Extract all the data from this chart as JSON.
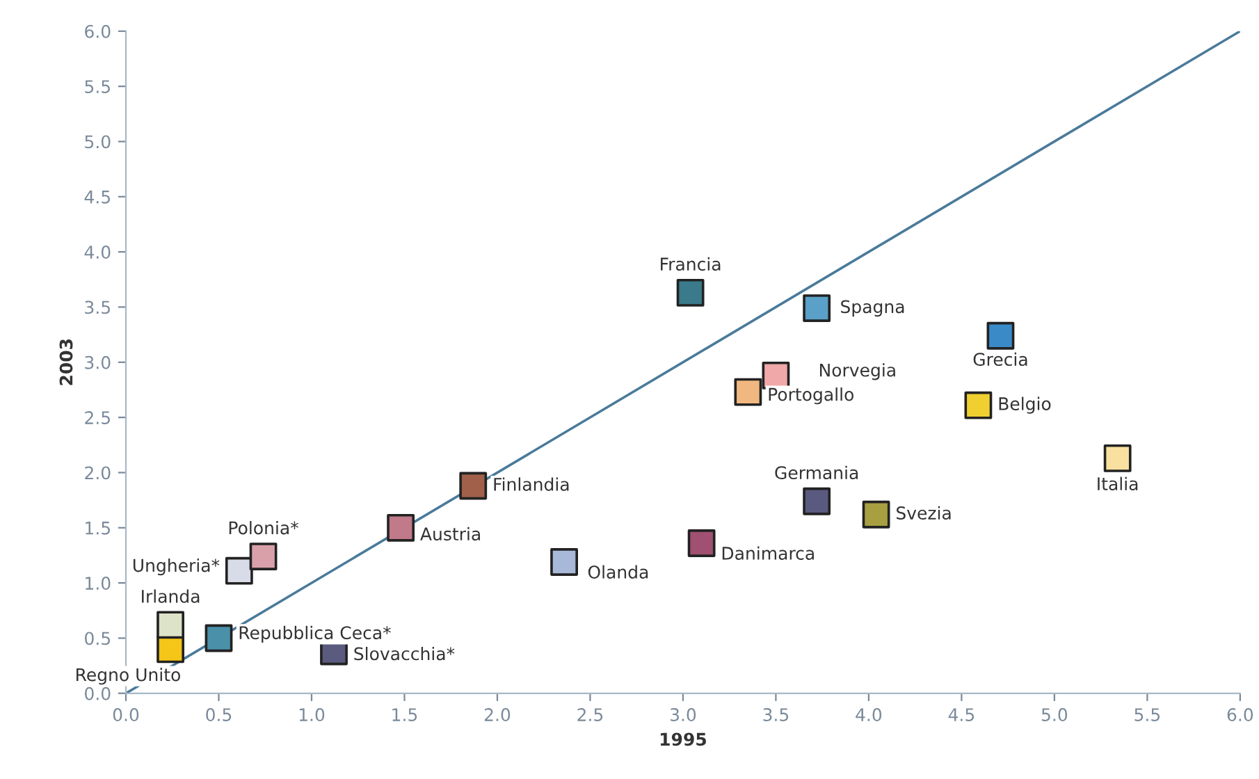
{
  "chart_data": {
    "type": "scatter",
    "xlabel": "1995",
    "ylabel": "2003",
    "xlim": [
      0,
      6
    ],
    "ylim": [
      0,
      6
    ],
    "xticks": [
      {
        "value": 0,
        "label": "0.0"
      },
      0.5,
      {
        "value": 1,
        "label": "1.0"
      },
      1.5,
      {
        "value": 2,
        "label": "2.0"
      },
      2.5,
      {
        "value": 3,
        "label": "3.0"
      },
      3.5,
      {
        "value": 4,
        "label": "4.0"
      },
      4.5,
      {
        "value": 5,
        "label": "5.0"
      },
      5.5,
      {
        "value": 6,
        "label": "6.0"
      }
    ],
    "yticks": [
      {
        "value": 0,
        "label": "0.0"
      },
      0.5,
      {
        "value": 1,
        "label": "1.0"
      },
      1.5,
      {
        "value": 2,
        "label": "2.0"
      },
      2.5,
      {
        "value": 3,
        "label": "3.0"
      },
      3.5,
      {
        "value": 4,
        "label": "4.0"
      },
      4.5,
      {
        "value": 5,
        "label": "5.0"
      },
      5.5,
      {
        "value": 6,
        "label": "6.0"
      }
    ],
    "grid": false,
    "legend": false,
    "marker": "square",
    "series": [
      {
        "x": [
          0.24,
          0.24,
          0.61,
          0.74,
          0.5,
          1.12,
          1.48,
          1.87,
          2.36,
          3.1,
          3.72,
          4.04,
          3.04,
          3.72,
          3.5,
          3.35,
          4.71,
          4.59,
          5.34
        ],
        "values": [
          0.4,
          0.62,
          1.11,
          1.24,
          0.5,
          0.38,
          1.5,
          1.88,
          1.19,
          1.36,
          1.74,
          1.62,
          3.63,
          3.49,
          2.88,
          2.73,
          3.24,
          2.61,
          2.13
        ],
        "colors": [
          "#f5c518",
          "#dde3c8",
          "#d8dce8",
          "#d9a0aa",
          "#4a90a8",
          "#5b5b80",
          "#c07a8a",
          "#a0604a",
          "#a8b8d8",
          "#a05070",
          "#5a5a80",
          "#a8a040",
          "#3a7a8a",
          "#5aa0c8",
          "#f0a8a8",
          "#f0b880",
          "#3a8ac8",
          "#f0d030",
          "#f8e0a0"
        ]
      },
      {
        "type": "line",
        "x": [
          0,
          6
        ],
        "values": [
          0,
          6
        ],
        "color": "#4a7a9a",
        "marker": "none",
        "line_style": "solid"
      }
    ],
    "annotations": [
      {
        "text": "Regno Unito",
        "x": 0.24,
        "y": 0.4
      },
      {
        "text": "Irlanda",
        "x": 0.24,
        "y": 0.62
      },
      {
        "text": "Ungheria*",
        "x": 0.61,
        "y": 1.11
      },
      {
        "text": "Polonia*",
        "x": 0.74,
        "y": 1.24
      },
      {
        "text": "Repubblica Ceca*",
        "x": 0.5,
        "y": 0.5
      },
      {
        "text": "Slovacchia*",
        "x": 1.12,
        "y": 0.38
      },
      {
        "text": "Austria",
        "x": 1.48,
        "y": 1.5
      },
      {
        "text": "Finlandia",
        "x": 1.87,
        "y": 1.88
      },
      {
        "text": "Olanda",
        "x": 2.36,
        "y": 1.19
      },
      {
        "text": "Danimarca",
        "x": 3.1,
        "y": 1.36
      },
      {
        "text": "Germania",
        "x": 3.72,
        "y": 1.74
      },
      {
        "text": "Svezia",
        "x": 4.04,
        "y": 1.62
      },
      {
        "text": "Francia",
        "x": 3.04,
        "y": 3.63
      },
      {
        "text": "Spagna",
        "x": 3.72,
        "y": 3.49
      },
      {
        "text": "Norvegia",
        "x": 3.5,
        "y": 2.88
      },
      {
        "text": "Portogallo",
        "x": 3.35,
        "y": 2.73
      },
      {
        "text": "Grecia",
        "x": 4.71,
        "y": 3.24
      },
      {
        "text": "Belgio",
        "x": 4.59,
        "y": 2.61
      },
      {
        "text": "Italia",
        "x": 5.34,
        "y": 2.13
      }
    ]
  }
}
